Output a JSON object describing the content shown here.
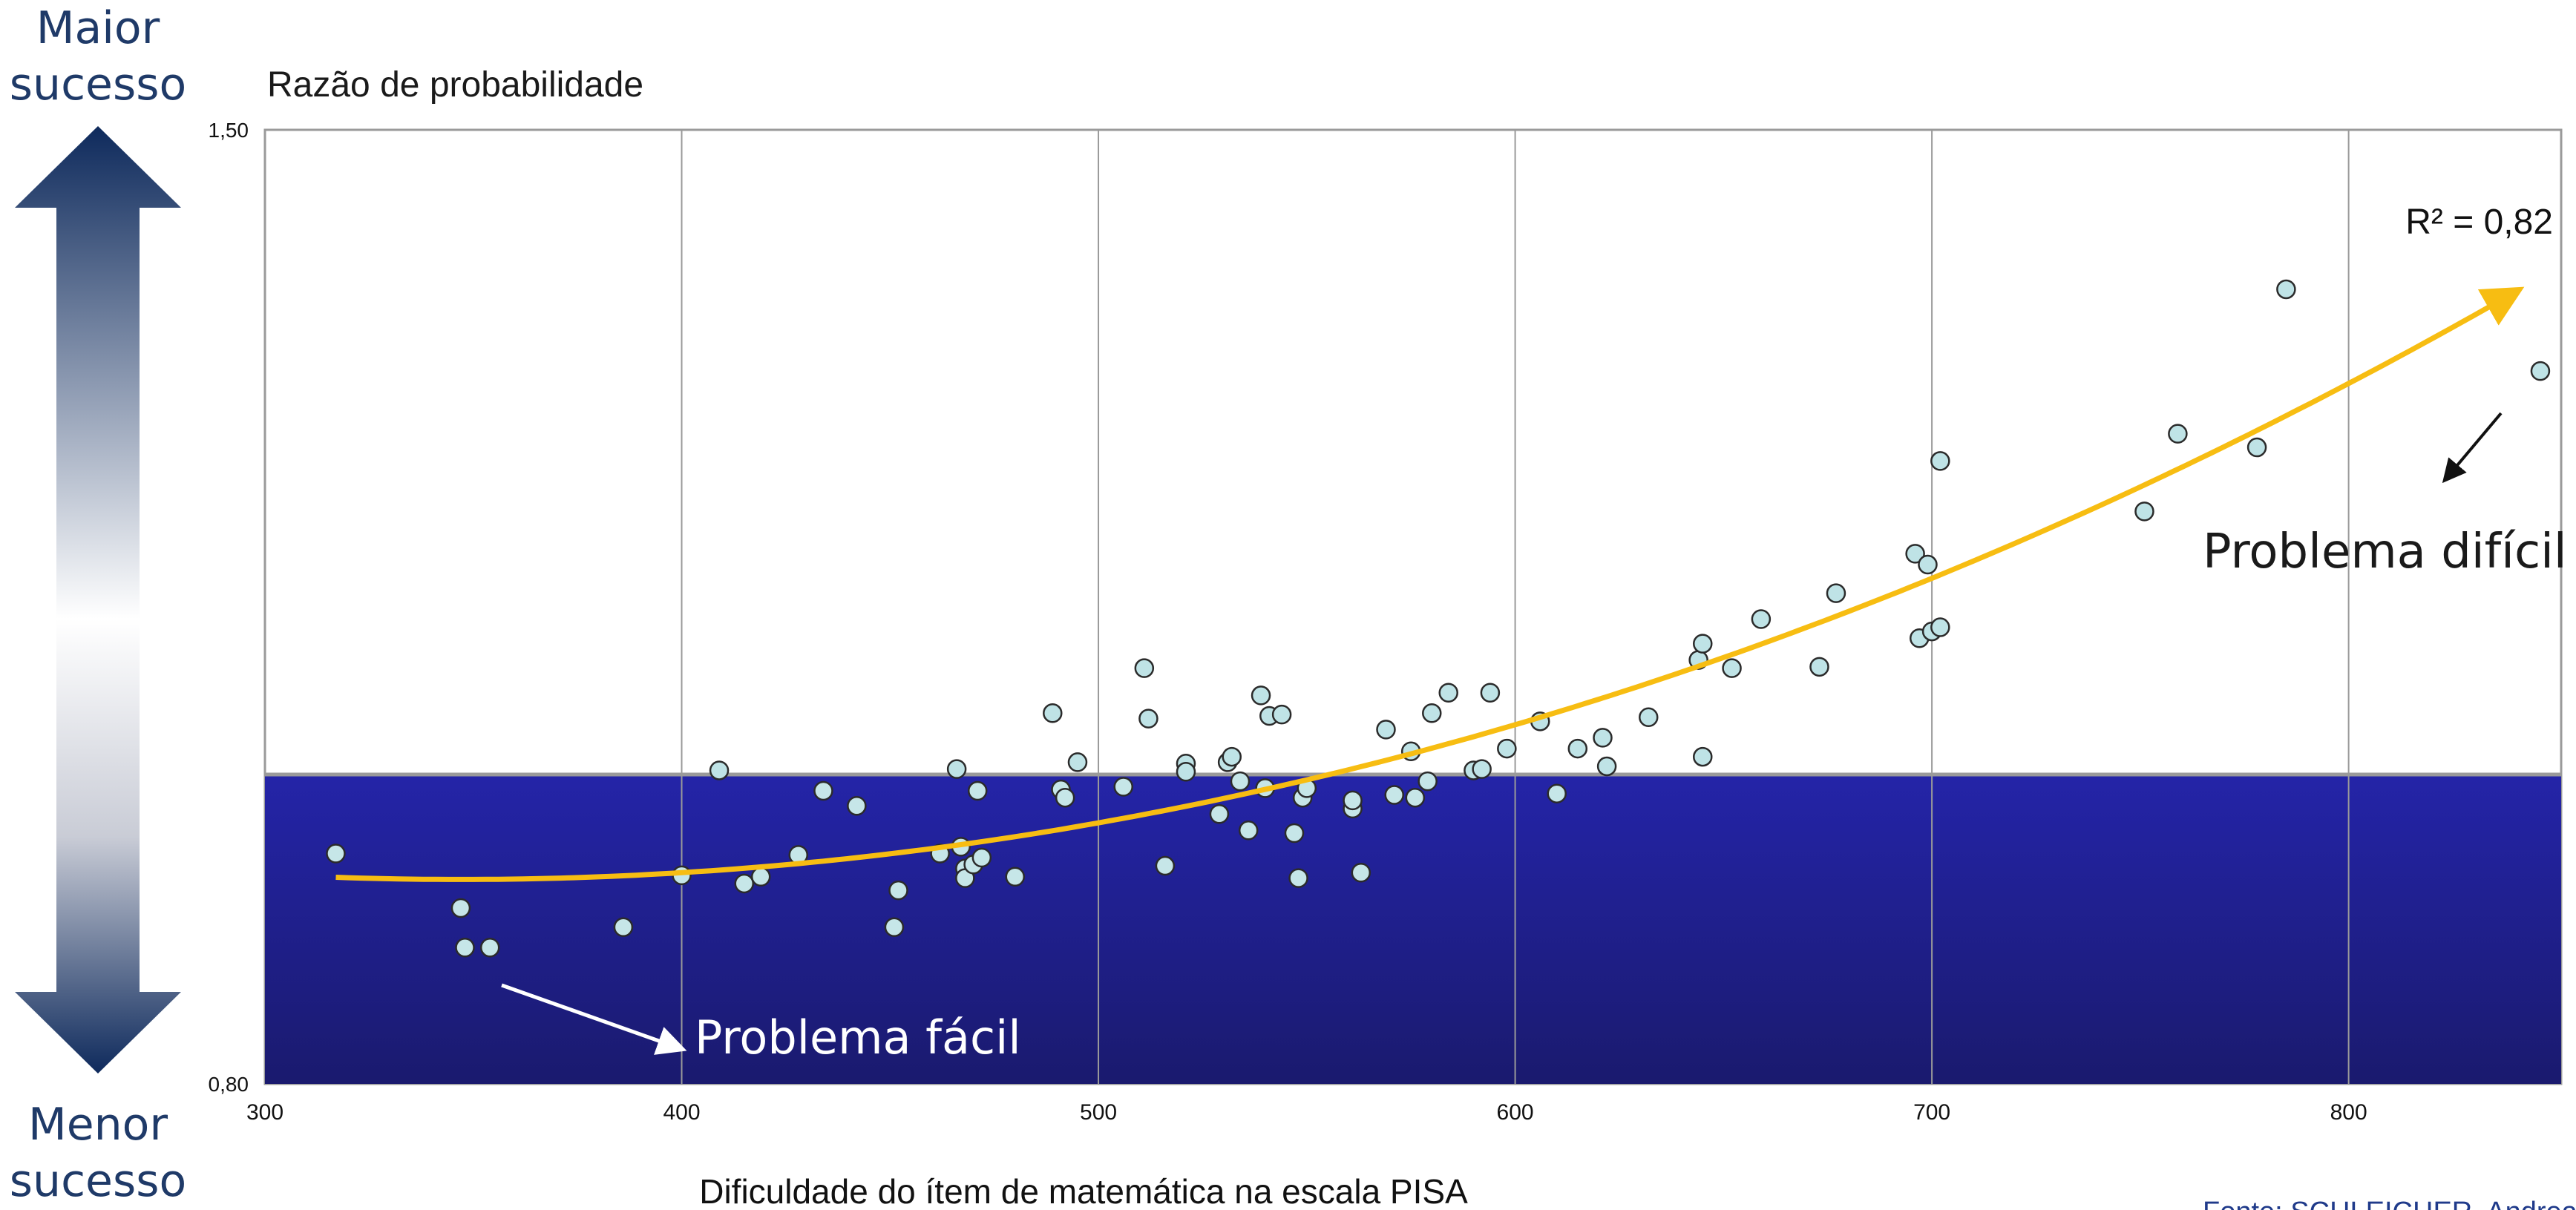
{
  "side_scale": {
    "top_line1": "Maior",
    "top_line2": "sucesso",
    "bottom_line1": "Menor",
    "bottom_line2": "sucesso"
  },
  "source_note": "Fonte: SCHLEICHER, Andreas",
  "colors": {
    "arrow_dark": "#0e2a5c",
    "arrow_light": "#ffffff",
    "lower_band_top": "#2424a8",
    "lower_band_bottom": "#1a1a6e",
    "point_fill": "#bfe3e6",
    "point_stroke": "#2b2b2b",
    "trend": "#f7bd12",
    "grid": "#9a9a9a"
  },
  "chart_data": {
    "type": "scatter",
    "ylabel": "Razão de probabilidade",
    "xlabel": "Dificuldade do ítem de matemática na escala PISA",
    "xlim": [
      300,
      851
    ],
    "ylim": [
      0.8,
      1.5
    ],
    "x_ticks": [
      "300",
      "400",
      "500",
      "600",
      "700",
      "800"
    ],
    "y_ticks": [
      "0,80",
      "1,50"
    ],
    "grid": "vertical",
    "reference_line": 1.027,
    "r_squared_label": "R² = 0,82",
    "annotations": {
      "hard": "Problema difícil",
      "easy": "Problema fácil"
    },
    "trendline": {
      "type": "quadratic",
      "x_start": 317,
      "x_end": 840,
      "y_start": 0.951,
      "y_min": 0.95,
      "x_min": 347,
      "y_end": 1.381
    },
    "points": [
      [
        317,
        0.969
      ],
      [
        347,
        0.929
      ],
      [
        348,
        0.9
      ],
      [
        354,
        0.9
      ],
      [
        386,
        0.915
      ],
      [
        400,
        0.953
      ],
      [
        409,
        1.03
      ],
      [
        415,
        0.947
      ],
      [
        419,
        0.952
      ],
      [
        428,
        0.968
      ],
      [
        434,
        1.015
      ],
      [
        442,
        1.004
      ],
      [
        451,
        0.915
      ],
      [
        452,
        0.942
      ],
      [
        462,
        0.969
      ],
      [
        466,
        1.031
      ],
      [
        467,
        0.974
      ],
      [
        468,
        0.958
      ],
      [
        468,
        0.951
      ],
      [
        470,
        0.961
      ],
      [
        471,
        1.015
      ],
      [
        472,
        0.966
      ],
      [
        480,
        0.952
      ],
      [
        489,
        1.072
      ],
      [
        491,
        1.016
      ],
      [
        492,
        1.01
      ],
      [
        495,
        1.036
      ],
      [
        506,
        1.018
      ],
      [
        511,
        1.105
      ],
      [
        512,
        1.068
      ],
      [
        516,
        0.96
      ],
      [
        521,
        1.035
      ],
      [
        521,
        1.029
      ],
      [
        529,
        0.998
      ],
      [
        531,
        1.036
      ],
      [
        532,
        1.04
      ],
      [
        534,
        1.022
      ],
      [
        536,
        0.986
      ],
      [
        539,
        1.085
      ],
      [
        540,
        1.017
      ],
      [
        541,
        1.07
      ],
      [
        544,
        1.071
      ],
      [
        547,
        0.984
      ],
      [
        548,
        0.951
      ],
      [
        549,
        1.01
      ],
      [
        550,
        1.017
      ],
      [
        561,
        1.002
      ],
      [
        561,
        1.008
      ],
      [
        563,
        0.955
      ],
      [
        569,
        1.06
      ],
      [
        571,
        1.012
      ],
      [
        575,
        1.044
      ],
      [
        576,
        1.01
      ],
      [
        579,
        1.022
      ],
      [
        580,
        1.072
      ],
      [
        584,
        1.087
      ],
      [
        590,
        1.03
      ],
      [
        592,
        1.031
      ],
      [
        594,
        1.087
      ],
      [
        598,
        1.046
      ],
      [
        606,
        1.066
      ],
      [
        610,
        1.013
      ],
      [
        615,
        1.046
      ],
      [
        621,
        1.054
      ],
      [
        622,
        1.033
      ],
      [
        632,
        1.069
      ],
      [
        644,
        1.111
      ],
      [
        645,
        1.04
      ],
      [
        645,
        1.123
      ],
      [
        652,
        1.105
      ],
      [
        659,
        1.141
      ],
      [
        673,
        1.106
      ],
      [
        677,
        1.16
      ],
      [
        696,
        1.189
      ],
      [
        697,
        1.127
      ],
      [
        699,
        1.181
      ],
      [
        700,
        1.132
      ],
      [
        702,
        1.135
      ],
      [
        702,
        1.257
      ],
      [
        751,
        1.22
      ],
      [
        759,
        1.277
      ],
      [
        778,
        1.267
      ],
      [
        785,
        1.383
      ],
      [
        846,
        1.323
      ]
    ]
  }
}
